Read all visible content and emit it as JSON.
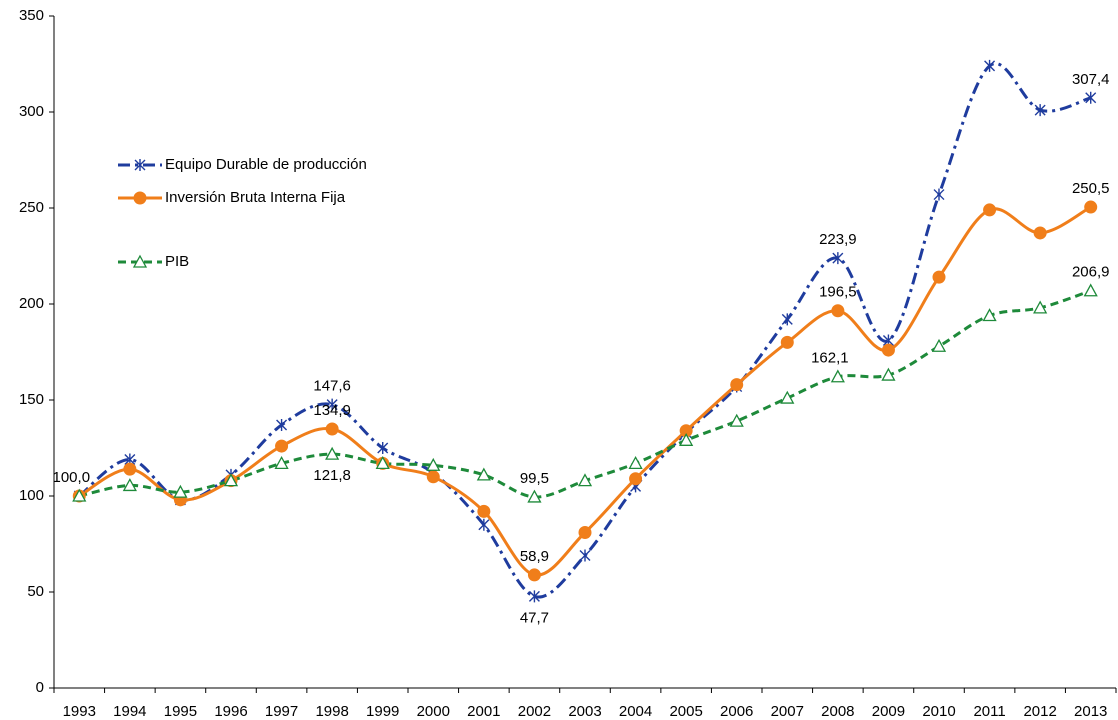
{
  "chart_data": {
    "type": "line",
    "categories": [
      "1993",
      "1994",
      "1995",
      "1996",
      "1997",
      "1998",
      "1999",
      "2000",
      "2001",
      "2002",
      "2003",
      "2004",
      "2005",
      "2006",
      "2007",
      "2008",
      "2009",
      "2010",
      "2011",
      "2012",
      "2013"
    ],
    "ylim": [
      0,
      350
    ],
    "yticks": [
      0,
      50,
      100,
      150,
      200,
      250,
      300,
      350
    ],
    "grid": false,
    "smooth": true,
    "legend": "upper left",
    "series": [
      {
        "name": "Equipo Durable de producción",
        "color": "#1f3c9e",
        "marker": "asterisk",
        "dash": "dashdot",
        "values": [
          100,
          119,
          98,
          111,
          137,
          147.6,
          125,
          112,
          85,
          47.7,
          69,
          105,
          133,
          157,
          192,
          223.9,
          181,
          257,
          324,
          301,
          307.4
        ],
        "value_labels": [
          null,
          null,
          null,
          null,
          null,
          "147,6",
          null,
          null,
          null,
          "47,7",
          null,
          null,
          null,
          null,
          null,
          "223,9",
          null,
          null,
          null,
          null,
          "307,4"
        ]
      },
      {
        "name": "Inversión Bruta Interna Fija",
        "color": "#f07e1a",
        "marker": "circle",
        "dash": "solid",
        "values": [
          100,
          114,
          98,
          108,
          126,
          134.9,
          117,
          110,
          92,
          58.9,
          81,
          109,
          134,
          158,
          180,
          196.5,
          176,
          214,
          249,
          237,
          250.5
        ],
        "value_labels": [
          "100,0",
          null,
          null,
          null,
          null,
          "134,9",
          null,
          null,
          null,
          "58,9",
          null,
          null,
          null,
          null,
          null,
          "196,5",
          null,
          null,
          null,
          null,
          "250,5"
        ]
      },
      {
        "name": "PIB",
        "color": "#1e8a3a",
        "marker": "triangle",
        "dash": "dashed",
        "values": [
          100,
          105.5,
          102,
          108,
          117,
          121.8,
          117,
          116,
          111,
          99.5,
          108,
          117,
          129,
          139,
          151,
          162.1,
          163,
          178,
          194,
          198,
          206.9
        ],
        "value_labels": [
          null,
          null,
          null,
          null,
          null,
          "121,8",
          null,
          null,
          null,
          "99,5",
          null,
          null,
          null,
          null,
          null,
          "162,1",
          null,
          null,
          null,
          null,
          "206,9"
        ]
      }
    ]
  }
}
